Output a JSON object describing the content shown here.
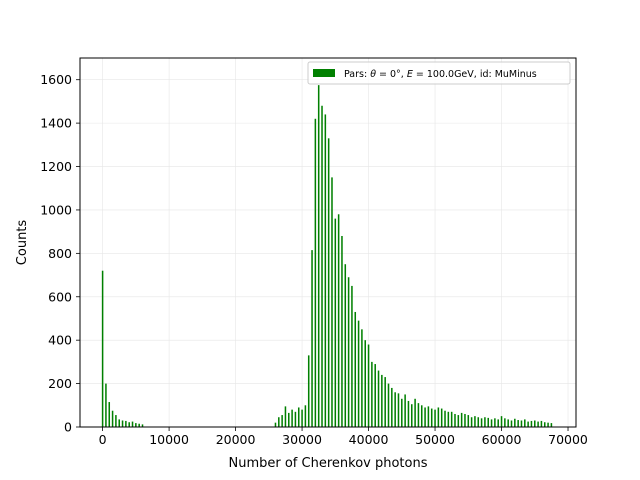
{
  "chart_data": {
    "type": "bar",
    "xlabel": "Number of Cherenkov photons",
    "ylabel": "Counts",
    "xlim": [
      -3400,
      71200
    ],
    "ylim": [
      0,
      1700
    ],
    "xticks": [
      0,
      10000,
      20000,
      30000,
      40000,
      50000,
      60000,
      70000
    ],
    "yticks": [
      0,
      200,
      400,
      600,
      800,
      1000,
      1200,
      1400,
      1600
    ],
    "grid": true,
    "legend": {
      "position": "top-right",
      "label": "Pars: θ = 0°, E = 100.0GeV, id: MuMinus"
    },
    "bar_color": "#008000",
    "bar_width": 230,
    "series": [
      {
        "name": "Pars: θ = 0°, E = 100.0GeV, id: MuMinus",
        "x": [
          0,
          500,
          1000,
          1500,
          2000,
          2500,
          3000,
          3500,
          4000,
          4500,
          5000,
          5500,
          6000,
          26000,
          26500,
          27000,
          27500,
          28000,
          28500,
          29000,
          29500,
          30000,
          30500,
          31000,
          31500,
          32000,
          32500,
          33000,
          33500,
          34000,
          34500,
          35000,
          35500,
          36000,
          36500,
          37000,
          37500,
          38000,
          38500,
          39000,
          39500,
          40000,
          40500,
          41000,
          41500,
          42000,
          42500,
          43000,
          43500,
          44000,
          44500,
          45000,
          45500,
          46000,
          46500,
          47000,
          47500,
          48000,
          48500,
          49000,
          49500,
          50000,
          50500,
          51000,
          51500,
          52000,
          52500,
          53000,
          53500,
          54000,
          54500,
          55000,
          55500,
          56000,
          56500,
          57000,
          57500,
          58000,
          58500,
          59000,
          59500,
          60000,
          60500,
          61000,
          61500,
          62000,
          62500,
          63000,
          63500,
          64000,
          64500,
          65000,
          65500,
          66000,
          66500,
          67000,
          67500
        ],
        "values": [
          720,
          200,
          115,
          75,
          55,
          35,
          30,
          28,
          22,
          25,
          18,
          15,
          12,
          20,
          45,
          55,
          95,
          65,
          80,
          70,
          90,
          80,
          100,
          330,
          815,
          1420,
          1575,
          1480,
          1440,
          1330,
          1150,
          960,
          980,
          880,
          750,
          690,
          650,
          530,
          490,
          450,
          400,
          380,
          300,
          290,
          260,
          240,
          230,
          200,
          180,
          160,
          155,
          130,
          150,
          120,
          105,
          130,
          110,
          100,
          90,
          95,
          85,
          80,
          90,
          85,
          75,
          70,
          70,
          60,
          55,
          65,
          60,
          55,
          45,
          50,
          45,
          40,
          45,
          42,
          35,
          40,
          35,
          50,
          40,
          35,
          30,
          38,
          32,
          30,
          35,
          25,
          28,
          30,
          25,
          28,
          22,
          20,
          18
        ]
      }
    ]
  }
}
